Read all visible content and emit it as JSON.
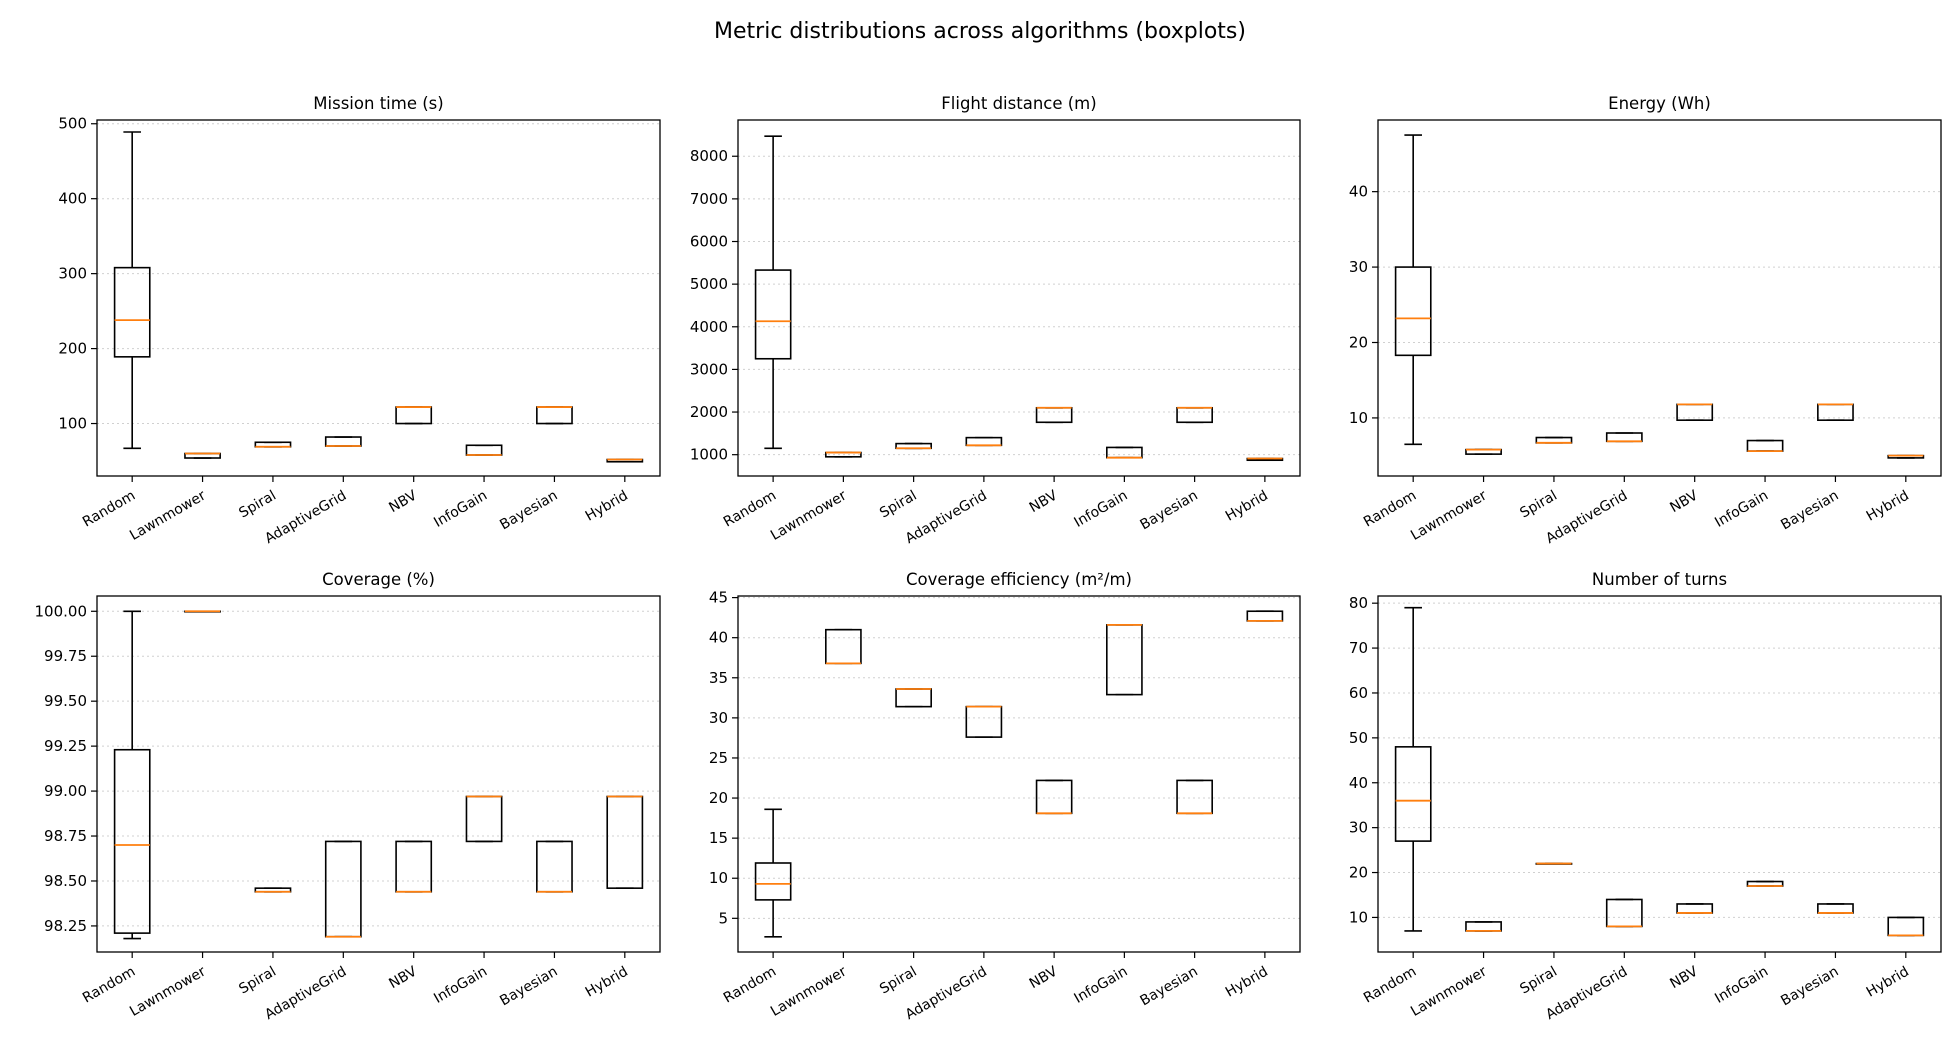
{
  "figure": {
    "title": "Metric distributions across algorithms (boxplots)"
  },
  "chart_data": [
    {
      "type": "boxplot",
      "title": "Mission time (s)",
      "categories": [
        "Random",
        "Lawnmower",
        "Spiral",
        "AdaptiveGrid",
        "NBV",
        "InfoGain",
        "Bayesian",
        "Hybrid"
      ],
      "ylim": [
        30,
        505
      ],
      "yticks": [
        100,
        200,
        300,
        400,
        500
      ],
      "tick_decimals": 0,
      "grid": true,
      "boxes": [
        {
          "whislo": 67,
          "q1": 189,
          "med": 238,
          "q3": 308,
          "whishi": 489
        },
        {
          "whislo": 54,
          "q1": 54,
          "med": 60,
          "q3": 60,
          "whishi": 60
        },
        {
          "whislo": 69,
          "q1": 69,
          "med": 69,
          "q3": 75,
          "whishi": 75
        },
        {
          "whislo": 70,
          "q1": 70,
          "med": 70,
          "q3": 82,
          "whishi": 82
        },
        {
          "whislo": 100,
          "q1": 100,
          "med": 122,
          "q3": 122,
          "whishi": 122
        },
        {
          "whislo": 58,
          "q1": 58,
          "med": 58,
          "q3": 71,
          "whishi": 71
        },
        {
          "whislo": 100,
          "q1": 100,
          "med": 122,
          "q3": 122,
          "whishi": 122
        },
        {
          "whislo": 49,
          "q1": 49,
          "med": 52,
          "q3": 52,
          "whishi": 52
        }
      ]
    },
    {
      "type": "boxplot",
      "title": "Flight distance (m)",
      "categories": [
        "Random",
        "Lawnmower",
        "Spiral",
        "AdaptiveGrid",
        "NBV",
        "InfoGain",
        "Bayesian",
        "Hybrid"
      ],
      "ylim": [
        500,
        8850
      ],
      "yticks": [
        1000,
        2000,
        3000,
        4000,
        5000,
        6000,
        7000,
        8000
      ],
      "tick_decimals": 0,
      "grid": true,
      "boxes": [
        {
          "whislo": 1150,
          "q1": 3250,
          "med": 4130,
          "q3": 5330,
          "whishi": 8470
        },
        {
          "whislo": 950,
          "q1": 950,
          "med": 1050,
          "q3": 1050,
          "whishi": 1050
        },
        {
          "whislo": 1150,
          "q1": 1150,
          "med": 1150,
          "q3": 1260,
          "whishi": 1260
        },
        {
          "whislo": 1220,
          "q1": 1220,
          "med": 1220,
          "q3": 1400,
          "whishi": 1400
        },
        {
          "whislo": 1760,
          "q1": 1760,
          "med": 2100,
          "q3": 2100,
          "whishi": 2100
        },
        {
          "whislo": 930,
          "q1": 930,
          "med": 930,
          "q3": 1170,
          "whishi": 1170
        },
        {
          "whislo": 1760,
          "q1": 1760,
          "med": 2100,
          "q3": 2100,
          "whishi": 2100
        },
        {
          "whislo": 870,
          "q1": 870,
          "med": 910,
          "q3": 910,
          "whishi": 910
        }
      ]
    },
    {
      "type": "boxplot",
      "title": "Energy (Wh)",
      "categories": [
        "Random",
        "Lawnmower",
        "Spiral",
        "AdaptiveGrid",
        "NBV",
        "InfoGain",
        "Bayesian",
        "Hybrid"
      ],
      "ylim": [
        2.3,
        49.5
      ],
      "yticks": [
        10,
        20,
        30,
        40
      ],
      "tick_decimals": 0,
      "grid": true,
      "boxes": [
        {
          "whislo": 6.5,
          "q1": 18.3,
          "med": 23.2,
          "q3": 30.0,
          "whishi": 47.5
        },
        {
          "whislo": 5.2,
          "q1": 5.2,
          "med": 5.8,
          "q3": 5.8,
          "whishi": 5.8
        },
        {
          "whislo": 6.7,
          "q1": 6.7,
          "med": 6.7,
          "q3": 7.4,
          "whishi": 7.4
        },
        {
          "whislo": 6.9,
          "q1": 6.9,
          "med": 6.9,
          "q3": 8.0,
          "whishi": 8.0
        },
        {
          "whislo": 9.7,
          "q1": 9.7,
          "med": 11.8,
          "q3": 11.8,
          "whishi": 11.8
        },
        {
          "whislo": 5.6,
          "q1": 5.6,
          "med": 5.6,
          "q3": 7.0,
          "whishi": 7.0
        },
        {
          "whislo": 9.7,
          "q1": 9.7,
          "med": 11.8,
          "q3": 11.8,
          "whishi": 11.8
        },
        {
          "whislo": 4.7,
          "q1": 4.7,
          "med": 5.0,
          "q3": 5.0,
          "whishi": 5.0
        }
      ]
    },
    {
      "type": "boxplot",
      "title": "Coverage (%)",
      "categories": [
        "Random",
        "Lawnmower",
        "Spiral",
        "AdaptiveGrid",
        "NBV",
        "InfoGain",
        "Bayesian",
        "Hybrid"
      ],
      "ylim": [
        98.105,
        100.085
      ],
      "yticks": [
        98.25,
        98.5,
        98.75,
        99.0,
        99.25,
        99.5,
        99.75,
        100.0
      ],
      "tick_decimals": 2,
      "grid": true,
      "boxes": [
        {
          "whislo": 98.18,
          "q1": 98.21,
          "med": 98.7,
          "q3": 99.23,
          "whishi": 100.0
        },
        {
          "whislo": 100.0,
          "q1": 100.0,
          "med": 100.0,
          "q3": 100.0,
          "whishi": 100.0
        },
        {
          "whislo": 98.44,
          "q1": 98.44,
          "med": 98.44,
          "q3": 98.46,
          "whishi": 98.46
        },
        {
          "whislo": 98.19,
          "q1": 98.19,
          "med": 98.19,
          "q3": 98.72,
          "whishi": 98.72
        },
        {
          "whislo": 98.44,
          "q1": 98.44,
          "med": 98.44,
          "q3": 98.72,
          "whishi": 98.72
        },
        {
          "whislo": 98.72,
          "q1": 98.72,
          "med": 98.97,
          "q3": 98.97,
          "whishi": 98.97
        },
        {
          "whislo": 98.44,
          "q1": 98.44,
          "med": 98.44,
          "q3": 98.72,
          "whishi": 98.72
        },
        {
          "whislo": 98.46,
          "q1": 98.46,
          "med": 98.97,
          "q3": 98.97,
          "whishi": 98.97
        }
      ]
    },
    {
      "type": "boxplot",
      "title": "Coverage efficiency (m²/m)",
      "categories": [
        "Random",
        "Lawnmower",
        "Spiral",
        "AdaptiveGrid",
        "NBV",
        "InfoGain",
        "Bayesian",
        "Hybrid"
      ],
      "ylim": [
        0.8,
        45.2
      ],
      "yticks": [
        5,
        10,
        15,
        20,
        25,
        30,
        35,
        40,
        45
      ],
      "tick_decimals": 0,
      "grid": true,
      "boxes": [
        {
          "whislo": 2.7,
          "q1": 7.3,
          "med": 9.3,
          "q3": 11.9,
          "whishi": 18.6
        },
        {
          "whislo": 36.8,
          "q1": 36.8,
          "med": 36.8,
          "q3": 41.0,
          "whishi": 41.0
        },
        {
          "whislo": 31.4,
          "q1": 31.4,
          "med": 33.6,
          "q3": 33.6,
          "whishi": 33.6
        },
        {
          "whislo": 27.6,
          "q1": 27.6,
          "med": 31.4,
          "q3": 31.4,
          "whishi": 31.4
        },
        {
          "whislo": 18.1,
          "q1": 18.1,
          "med": 18.1,
          "q3": 22.2,
          "whishi": 22.2
        },
        {
          "whislo": 32.9,
          "q1": 32.9,
          "med": 41.6,
          "q3": 41.6,
          "whishi": 41.6
        },
        {
          "whislo": 18.1,
          "q1": 18.1,
          "med": 18.1,
          "q3": 22.2,
          "whishi": 22.2
        },
        {
          "whislo": 42.1,
          "q1": 42.1,
          "med": 42.1,
          "q3": 43.3,
          "whishi": 43.3
        }
      ]
    },
    {
      "type": "boxplot",
      "title": "Number of turns",
      "categories": [
        "Random",
        "Lawnmower",
        "Spiral",
        "AdaptiveGrid",
        "NBV",
        "InfoGain",
        "Bayesian",
        "Hybrid"
      ],
      "ylim": [
        2.3,
        81.6
      ],
      "yticks": [
        10,
        20,
        30,
        40,
        50,
        60,
        70,
        80
      ],
      "tick_decimals": 0,
      "grid": true,
      "boxes": [
        {
          "whislo": 7,
          "q1": 27,
          "med": 36,
          "q3": 48,
          "whishi": 79
        },
        {
          "whislo": 7,
          "q1": 7,
          "med": 7,
          "q3": 9,
          "whishi": 9
        },
        {
          "whislo": 22,
          "q1": 22,
          "med": 22,
          "q3": 22,
          "whishi": 22
        },
        {
          "whislo": 8,
          "q1": 8,
          "med": 8,
          "q3": 14,
          "whishi": 14
        },
        {
          "whislo": 11,
          "q1": 11,
          "med": 11,
          "q3": 13,
          "whishi": 13
        },
        {
          "whislo": 17,
          "q1": 17,
          "med": 17,
          "q3": 18,
          "whishi": 18
        },
        {
          "whislo": 11,
          "q1": 11,
          "med": 11,
          "q3": 13,
          "whishi": 13
        },
        {
          "whislo": 6,
          "q1": 6,
          "med": 6,
          "q3": 10,
          "whishi": 10
        }
      ]
    }
  ]
}
